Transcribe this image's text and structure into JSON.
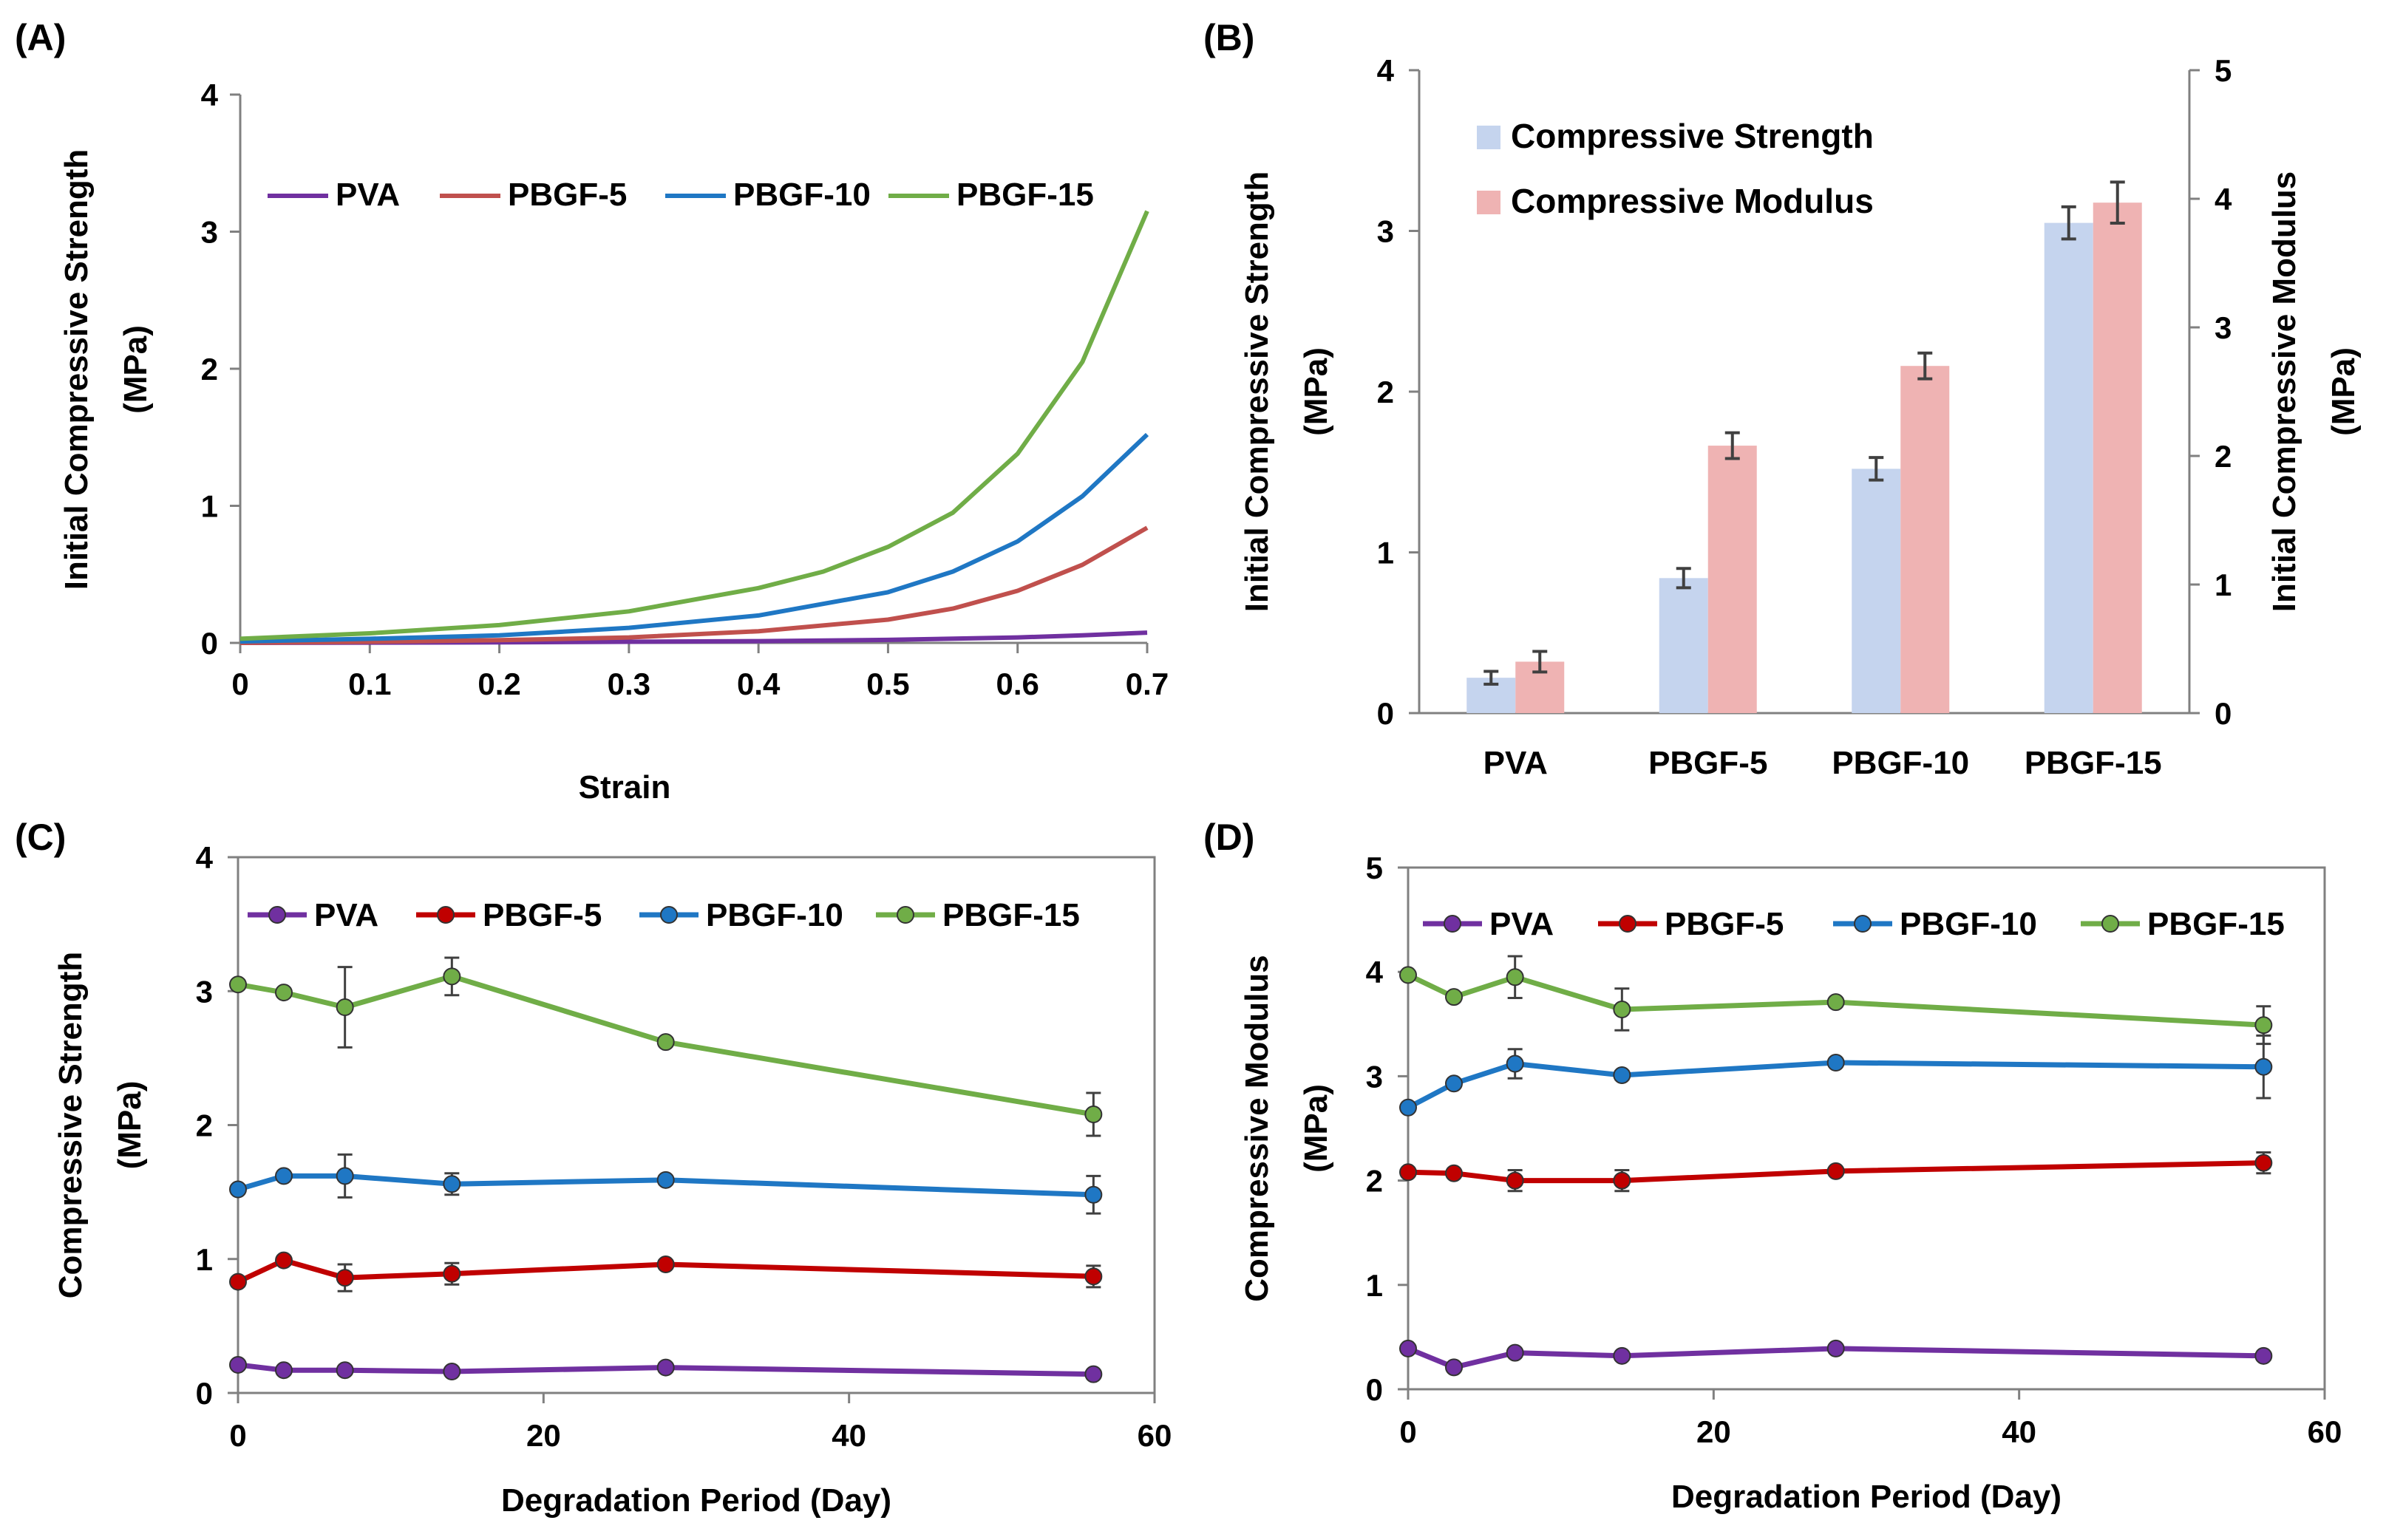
{
  "colors": {
    "PVA": "#7030a0",
    "PBGF-5": "#c0504d",
    "PBGF-10": "#1f77c4",
    "PBGF-15": "#70ad47",
    "PBGF-5-markers": "#c00000",
    "strength_bar": "#c5d4ee",
    "modulus_bar": "#efb3b3",
    "axis": "#808080",
    "error": "#404040"
  },
  "chart_data": [
    {
      "panel_label": "(A)",
      "type": "line",
      "title": "",
      "xlabel": "Strain",
      "ylabel_line1": "Initial Compressive Strength",
      "ylabel_line2": "(MPa)",
      "xlim": [
        0,
        0.7
      ],
      "ylim": [
        0,
        4
      ],
      "xticks": [
        "0",
        "0.1",
        "0.2",
        "0.3",
        "0.4",
        "0.5",
        "0.6",
        "0.7"
      ],
      "yticks": [
        "0",
        "1",
        "2",
        "3",
        "4"
      ],
      "legend": "top",
      "series": [
        {
          "name": "PVA",
          "x": [
            0,
            0.1,
            0.2,
            0.3,
            0.4,
            0.5,
            0.6,
            0.65,
            0.7
          ],
          "y": [
            0,
            0.002,
            0.004,
            0.008,
            0.013,
            0.022,
            0.04,
            0.055,
            0.075
          ]
        },
        {
          "name": "PBGF-5",
          "x": [
            0,
            0.1,
            0.2,
            0.3,
            0.4,
            0.5,
            0.55,
            0.6,
            0.65,
            0.7
          ],
          "y": [
            0,
            0.008,
            0.02,
            0.04,
            0.085,
            0.17,
            0.25,
            0.38,
            0.57,
            0.84
          ]
        },
        {
          "name": "PBGF-10",
          "x": [
            0,
            0.1,
            0.2,
            0.3,
            0.4,
            0.5,
            0.55,
            0.6,
            0.65,
            0.7
          ],
          "y": [
            0.01,
            0.03,
            0.055,
            0.11,
            0.2,
            0.37,
            0.52,
            0.74,
            1.07,
            1.52
          ]
        },
        {
          "name": "PBGF-15",
          "x": [
            0,
            0.1,
            0.2,
            0.3,
            0.4,
            0.45,
            0.5,
            0.55,
            0.6,
            0.65,
            0.7
          ],
          "y": [
            0.03,
            0.07,
            0.13,
            0.23,
            0.4,
            0.52,
            0.7,
            0.95,
            1.38,
            2.05,
            3.15
          ]
        }
      ]
    },
    {
      "panel_label": "(B)",
      "type": "bar",
      "title": "",
      "ylabel_line1": "Initial Compressive Strength",
      "ylabel_line2": "(MPa)",
      "y2label_line1": "Initial Compressive Modulus",
      "y2label_line2": "(MPa)",
      "categories": [
        "PVA",
        "PBGF-5",
        "PBGF-10",
        "PBGF-15"
      ],
      "ylim": [
        0,
        4
      ],
      "y2lim": [
        0,
        5
      ],
      "yticks": [
        "0",
        "1",
        "2",
        "3",
        "4"
      ],
      "y2ticks": [
        "0",
        "1",
        "2",
        "3",
        "4",
        "5"
      ],
      "legend": "top-left",
      "series": [
        {
          "name": "Compressive Strength",
          "axis": "left",
          "values": [
            0.22,
            0.84,
            1.52,
            3.05
          ],
          "errors": [
            0.04,
            0.06,
            0.07,
            0.1
          ]
        },
        {
          "name": "Compressive Modulus",
          "axis": "right",
          "values": [
            0.4,
            2.08,
            2.7,
            3.97
          ],
          "errors": [
            0.08,
            0.1,
            0.1,
            0.16
          ]
        }
      ]
    },
    {
      "panel_label": "(C)",
      "type": "line",
      "title": "",
      "xlabel": "Degradation Period (Day)",
      "ylabel_line1": "Compressive Strength",
      "ylabel_line2": "(MPa)",
      "xlim": [
        0,
        60
      ],
      "ylim": [
        0,
        4
      ],
      "xticks": [
        "0",
        "20",
        "40",
        "60"
      ],
      "yticks": [
        "0",
        "1",
        "2",
        "3",
        "4"
      ],
      "legend": "top",
      "x": [
        0,
        3,
        7,
        14,
        28,
        56
      ],
      "series": [
        {
          "name": "PVA",
          "values": [
            0.21,
            0.17,
            0.17,
            0.16,
            0.19,
            0.14
          ],
          "errors": [
            0.02,
            0.02,
            0.02,
            0.02,
            0.02,
            0.02
          ]
        },
        {
          "name": "PBGF-5",
          "values": [
            0.83,
            0.99,
            0.86,
            0.89,
            0.96,
            0.87
          ],
          "errors": [
            0.03,
            0.03,
            0.1,
            0.08,
            0.03,
            0.08
          ]
        },
        {
          "name": "PBGF-10",
          "values": [
            1.52,
            1.62,
            1.62,
            1.56,
            1.59,
            1.48
          ],
          "errors": [
            0.03,
            0.03,
            0.16,
            0.08,
            0.03,
            0.14
          ]
        },
        {
          "name": "PBGF-15",
          "values": [
            3.05,
            2.99,
            2.88,
            3.11,
            2.62,
            2.08
          ],
          "errors": [
            0.03,
            0.03,
            0.3,
            0.14,
            0.03,
            0.16
          ]
        }
      ]
    },
    {
      "panel_label": "(D)",
      "type": "line",
      "title": "",
      "xlabel": "Degradation Period (Day)",
      "ylabel_line1": "Compressive Modulus",
      "ylabel_line2": "(MPa)",
      "xlim": [
        0,
        60
      ],
      "ylim": [
        0,
        5
      ],
      "xticks": [
        "0",
        "20",
        "40",
        "60"
      ],
      "yticks": [
        "0",
        "1",
        "2",
        "3",
        "4",
        "5"
      ],
      "legend": "top",
      "x": [
        0,
        3,
        7,
        14,
        28,
        56
      ],
      "series": [
        {
          "name": "PVA",
          "values": [
            0.39,
            0.21,
            0.35,
            0.32,
            0.39,
            0.32
          ],
          "errors": [
            0.03,
            0.03,
            0.03,
            0.03,
            0.03,
            0.03
          ]
        },
        {
          "name": "PBGF-5",
          "values": [
            2.08,
            2.07,
            2.0,
            2.0,
            2.09,
            2.17
          ],
          "errors": [
            0.03,
            0.03,
            0.1,
            0.1,
            0.03,
            0.1
          ]
        },
        {
          "name": "PBGF-10",
          "values": [
            2.7,
            2.93,
            3.12,
            3.01,
            3.13,
            3.09
          ],
          "errors": [
            0.03,
            0.03,
            0.14,
            0.04,
            0.03,
            0.3
          ]
        },
        {
          "name": "PBGF-15",
          "values": [
            3.97,
            3.76,
            3.95,
            3.64,
            3.71,
            3.49
          ],
          "errors": [
            0.03,
            0.03,
            0.2,
            0.2,
            0.03,
            0.18
          ]
        }
      ]
    }
  ]
}
